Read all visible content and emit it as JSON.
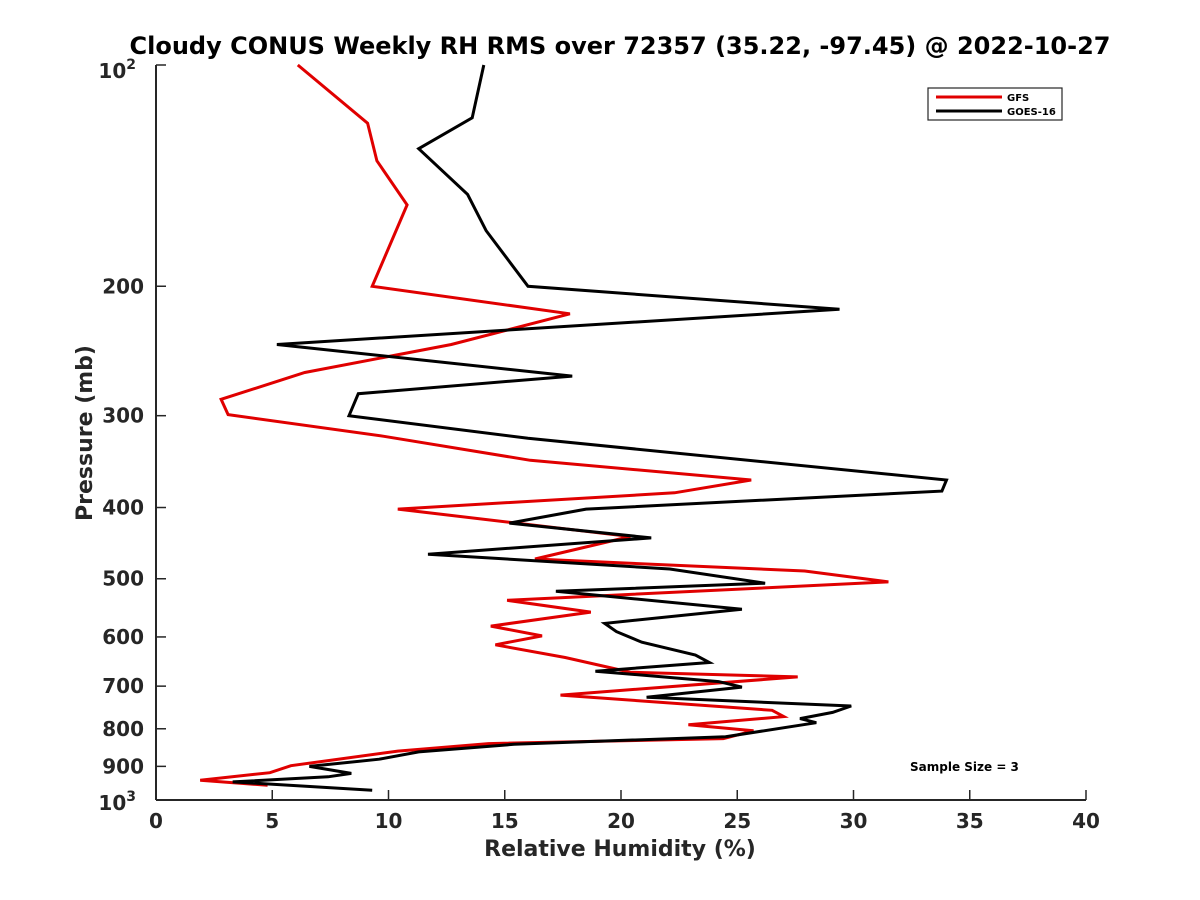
{
  "chart_data": {
    "type": "line",
    "title": "Cloudy CONUS Weekly RH RMS over 72357 (35.22, -97.45) @ 2022-10-27",
    "xlabel": "Relative Humidity (%)",
    "ylabel": "Pressure (mb)",
    "xlim": [
      0,
      40
    ],
    "ylim": [
      100,
      1000
    ],
    "y_scale": "log",
    "y_reversed": true,
    "x_ticks": [
      0,
      5,
      10,
      15,
      20,
      25,
      30,
      35,
      40
    ],
    "x_tick_labels": [
      "0",
      "5",
      "10",
      "15",
      "20",
      "25",
      "30",
      "35",
      "40"
    ],
    "y_ticks": [
      200,
      300,
      400,
      500,
      600,
      700,
      800,
      900
    ],
    "y_tick_labels": [
      "200",
      "300",
      "400",
      "500",
      "600",
      "700",
      "800",
      "900"
    ],
    "y_top_label": {
      "base": "10",
      "exp": "2"
    },
    "y_bottom_label": {
      "base": "10",
      "exp": "3"
    },
    "grid": false,
    "legend_position": "top-right",
    "series": [
      {
        "name": "GFS",
        "color": "#e00000",
        "x": [
          6.1,
          9.1,
          9.5,
          10.8,
          9.3,
          17.8,
          12.7,
          6.4,
          2.8,
          3.1,
          9.8,
          16.1,
          25.6,
          22.3,
          10.4,
          20.4,
          16.3,
          27.9,
          31.5,
          15.1,
          18.7,
          14.4,
          16.6,
          14.6,
          17.6,
          20.4,
          27.6,
          17.4,
          26.5,
          27.0,
          22.9,
          25.7,
          24.4,
          14.3,
          10.4,
          5.8,
          4.9,
          1.9,
          4.8
        ],
        "y": [
          100,
          120,
          135,
          155,
          200,
          218,
          240,
          262,
          285,
          299,
          320,
          345,
          367,
          382,
          402,
          438,
          470,
          488,
          505,
          535,
          555,
          580,
          598,
          615,
          640,
          670,
          680,
          720,
          755,
          770,
          790,
          805,
          825,
          838,
          858,
          898,
          918,
          940,
          955
        ],
        "note": ""
      },
      {
        "name": "GOES-16",
        "color": "#000000",
        "x": [
          14.1,
          13.6,
          11.3,
          13.4,
          14.2,
          16.0,
          29.4,
          5.2,
          17.9,
          8.7,
          8.3,
          16.0,
          34.0,
          33.8,
          18.5,
          15.2,
          21.3,
          11.7,
          22.1,
          26.2,
          17.2,
          25.2,
          19.3,
          19.8,
          20.9,
          23.2,
          23.8,
          18.9,
          24.2,
          25.2,
          21.1,
          29.9,
          29.1,
          27.7,
          28.4,
          24.5,
          15.4,
          11.3,
          9.6,
          6.6,
          8.4,
          7.4,
          3.3,
          9.3
        ],
        "y": [
          100,
          118,
          130,
          150,
          168,
          200,
          215,
          240,
          265,
          280,
          300,
          322,
          367,
          380,
          402,
          420,
          440,
          463,
          485,
          507,
          520,
          550,
          575,
          590,
          610,
          635,
          650,
          668,
          690,
          702,
          725,
          745,
          760,
          775,
          785,
          820,
          840,
          860,
          880,
          900,
          920,
          930,
          945,
          970
        ],
        "note": ""
      }
    ],
    "annotations": [
      {
        "text": "Sample Size = 3"
      }
    ]
  }
}
